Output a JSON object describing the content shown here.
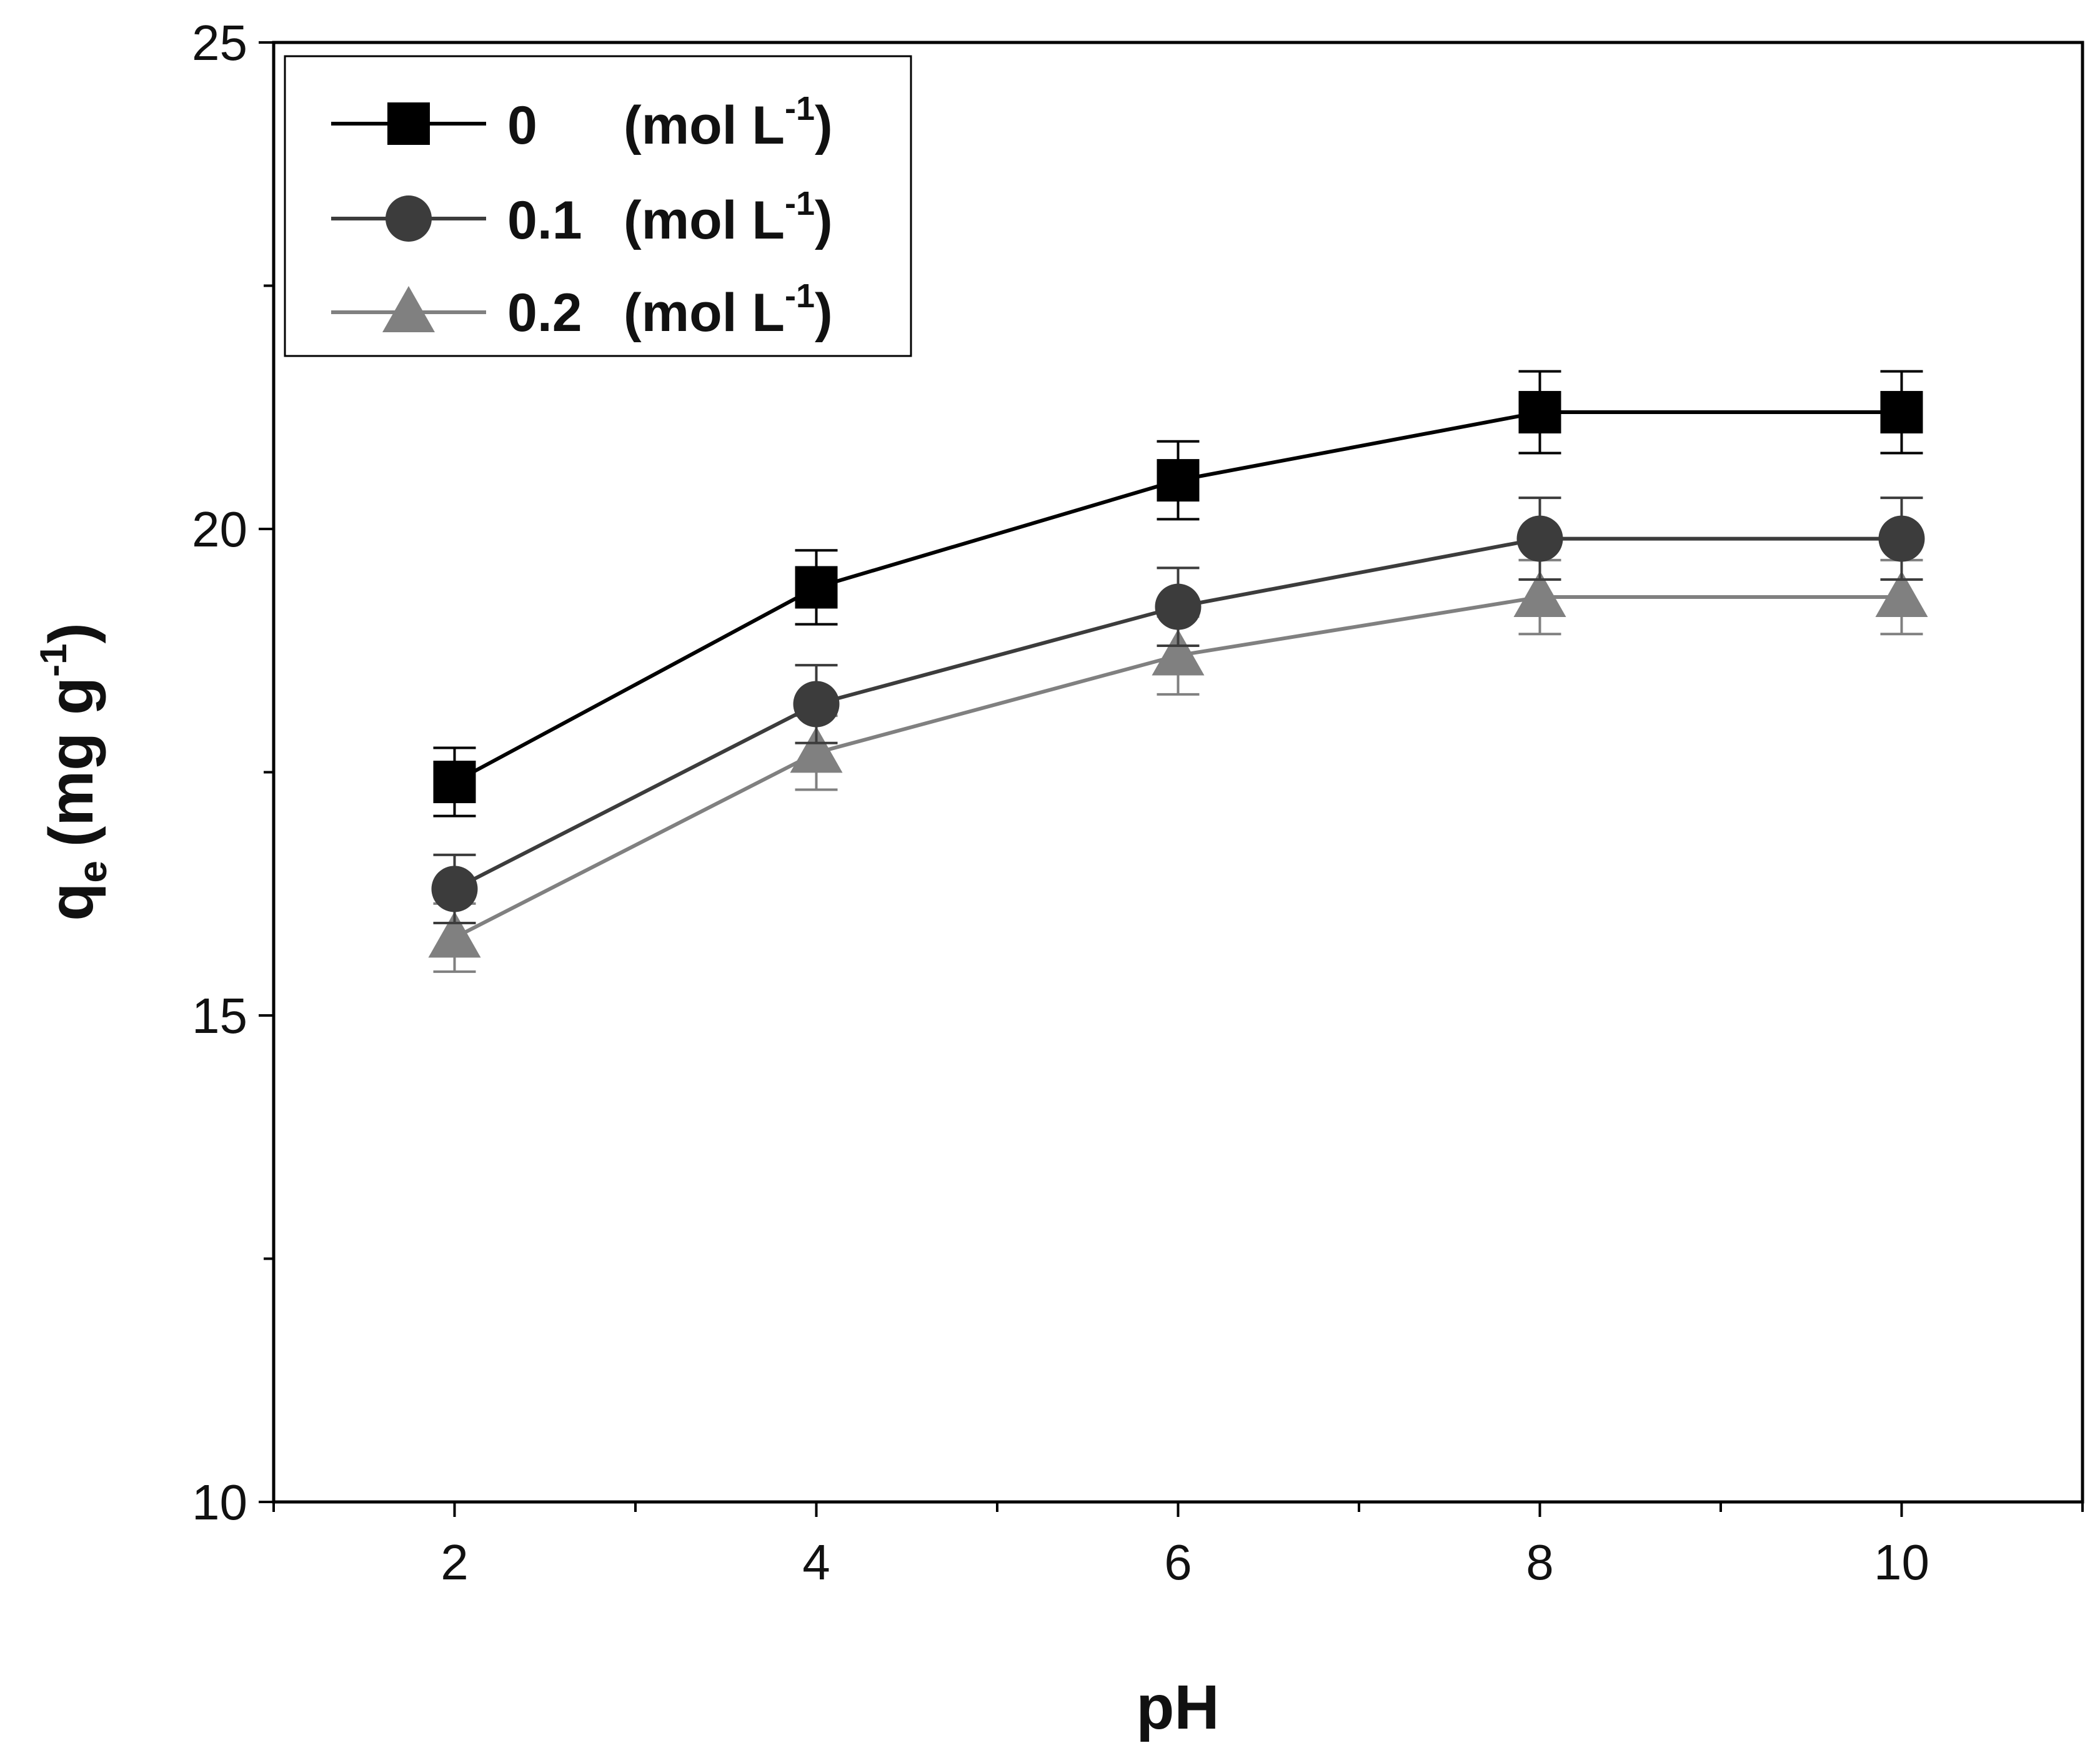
{
  "chart_data": {
    "type": "line",
    "title": "",
    "xlabel": "pH",
    "ylabel_main": "q",
    "ylabel_sub": "e",
    "ylabel_unit": "(mg g",
    "ylabel_sup": "-1",
    "ylabel_close": ")",
    "xlim": [
      1,
      11
    ],
    "ylim": [
      10,
      25
    ],
    "xticks": [
      2,
      4,
      6,
      8,
      10
    ],
    "xtick_labels": [
      "2",
      "4",
      "6",
      "8",
      "10"
    ],
    "yticks": [
      10,
      15,
      20,
      25
    ],
    "ytick_labels": [
      "10",
      "15",
      "20",
      "25"
    ],
    "x": [
      2,
      4,
      6,
      8,
      10
    ],
    "legend_position": "top-left",
    "series": [
      {
        "name": "0    (mol L-1)",
        "legend_value": "0",
        "legend_unit": "(mol L",
        "legend_sup": "-1",
        "legend_close": ")",
        "marker": "square",
        "color": "#000000",
        "values": [
          17.4,
          19.4,
          20.5,
          21.2,
          21.2
        ],
        "errors": [
          0.35,
          0.38,
          0.4,
          0.42,
          0.42
        ]
      },
      {
        "name": "0.1 (mol L-1)",
        "legend_value": "0.1",
        "legend_unit": "(mol L",
        "legend_sup": "-1",
        "legend_close": ")",
        "marker": "circle",
        "color": "#3c3c3c",
        "values": [
          16.3,
          18.2,
          19.2,
          19.9,
          19.9
        ],
        "errors": [
          0.35,
          0.4,
          0.4,
          0.42,
          0.42
        ]
      },
      {
        "name": "0.2 (mol L-1)",
        "legend_value": "0.2",
        "legend_unit": "(mol L",
        "legend_sup": "-1",
        "legend_close": ")",
        "marker": "triangle",
        "color": "#808080",
        "values": [
          15.8,
          17.7,
          18.7,
          19.3,
          19.3
        ],
        "errors": [
          0.35,
          0.38,
          0.4,
          0.38,
          0.38
        ]
      }
    ]
  }
}
